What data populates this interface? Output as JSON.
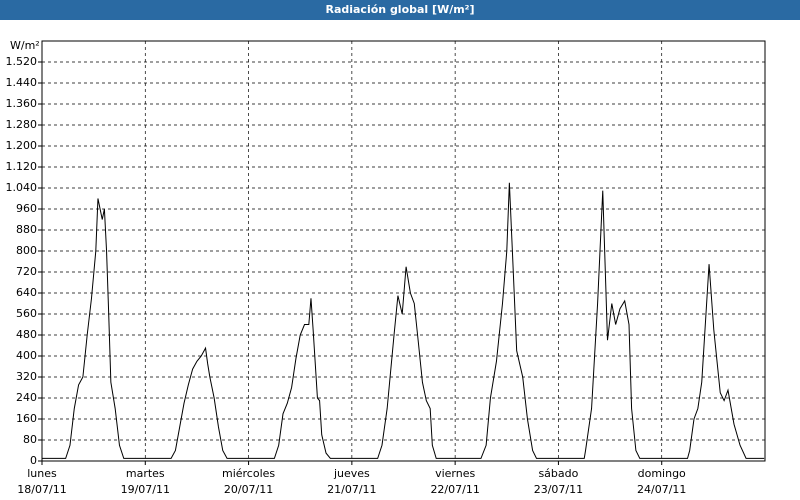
{
  "chart_data": {
    "type": "line",
    "title": "Radiación global [W/m²]",
    "y_label": "W/m²",
    "color": "#000000",
    "grid": true,
    "xlim": [
      0,
      168
    ],
    "ylim": [
      0,
      1600
    ],
    "xticks": [
      {
        "value": 0,
        "label": "lunes\n18/07/11"
      },
      {
        "value": 24,
        "label": "martes\n19/07/11"
      },
      {
        "value": 48,
        "label": "miércoles\n20/07/11"
      },
      {
        "value": 72,
        "label": "jueves\n21/07/11"
      },
      {
        "value": 96,
        "label": "viernes\n22/07/11"
      },
      {
        "value": 120,
        "label": "sábado\n23/07/11"
      },
      {
        "value": 144,
        "label": "domingo\n24/07/11"
      }
    ],
    "yticks": [
      0,
      80,
      160,
      240,
      320,
      400,
      480,
      560,
      640,
      720,
      800,
      880,
      960,
      {
        "value": 1040,
        "label": "1.040"
      },
      {
        "value": 1120,
        "label": "1.120"
      },
      {
        "value": 1200,
        "label": "1.200"
      },
      {
        "value": 1280,
        "label": "1.280"
      },
      {
        "value": 1360,
        "label": "1.360"
      },
      {
        "value": 1440,
        "label": "1.440"
      },
      {
        "value": 1520,
        "label": "1.520"
      }
    ],
    "x": [
      0,
      5.5,
      6.5,
      7.5,
      8.5,
      9.5,
      10.5,
      11.5,
      12.5,
      13,
      13.5,
      14,
      14.5,
      15,
      15.5,
      16,
      17,
      18,
      19,
      30,
      31,
      32,
      33,
      34,
      35,
      36,
      37,
      38,
      38.5,
      39,
      40,
      41,
      42,
      43,
      54,
      55,
      56,
      57,
      58,
      59,
      60,
      61,
      62,
      62.5,
      63,
      64,
      64.5,
      65,
      66,
      67,
      78,
      79,
      80.2,
      81.8,
      82.7,
      83.7,
      84.6,
      85.6,
      86.5,
      87.4,
      88.4,
      89.3,
      90.2,
      90.7,
      91.6,
      102,
      103.2,
      104.2,
      105.6,
      107,
      108,
      108.6,
      109.3,
      110.3,
      111.7,
      112.8,
      114,
      114.9,
      126,
      126.3,
      127.7,
      129.1,
      130.3,
      131.4,
      132.4,
      133.3,
      134.3,
      135.4,
      136.4,
      137,
      138,
      138.9,
      150,
      150.5,
      151.5,
      152.4,
      153.3,
      155,
      156.1,
      157.6,
      158.5,
      159.4,
      160.8,
      162.2,
      163.6,
      167.8
    ],
    "values": [
      10,
      10,
      60,
      200,
      290,
      320,
      480,
      620,
      800,
      1000,
      960,
      920,
      960,
      800,
      560,
      300,
      200,
      60,
      10,
      10,
      40,
      130,
      220,
      290,
      350,
      380,
      400,
      430,
      370,
      320,
      240,
      130,
      40,
      10,
      10,
      60,
      180,
      220,
      280,
      390,
      480,
      520,
      520,
      620,
      500,
      240,
      230,
      100,
      30,
      10,
      10,
      60,
      200,
      480,
      630,
      560,
      740,
      640,
      600,
      460,
      300,
      230,
      200,
      60,
      10,
      10,
      60,
      240,
      380,
      600,
      800,
      1060,
      800,
      420,
      320,
      160,
      40,
      10,
      10,
      40,
      200,
      600,
      1030,
      460,
      600,
      520,
      580,
      610,
      520,
      200,
      40,
      10,
      10,
      40,
      160,
      200,
      300,
      750,
      500,
      260,
      230,
      270,
      140,
      60,
      10,
      10
    ]
  }
}
